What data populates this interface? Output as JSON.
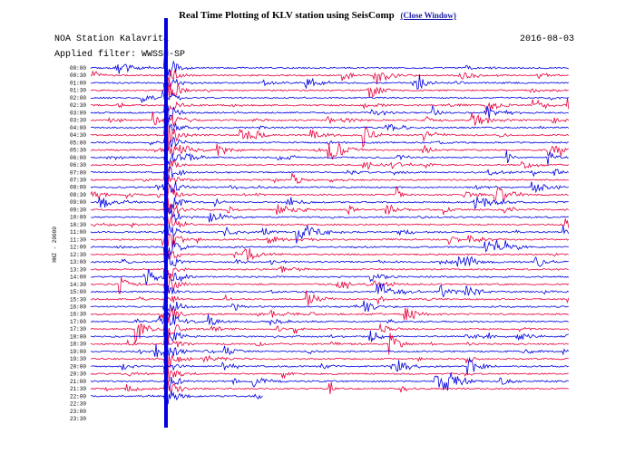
{
  "header": {
    "title": "Real Time Plotting of KLV station using SeisComp",
    "close_link": "(Close Window)"
  },
  "plot": {
    "station": "NOA Station Kalavrita",
    "date": "2016-08-03",
    "filter": "Applied filter: WWSSN-SP",
    "axis_label": "HHZ - 20000",
    "times": [
      "00:00",
      "00:30",
      "01:00",
      "01:30",
      "02:00",
      "02:30",
      "03:00",
      "03:30",
      "04:00",
      "04:30",
      "05:00",
      "05:30",
      "06:00",
      "06:30",
      "07:00",
      "07:30",
      "08:00",
      "08:30",
      "09:00",
      "09:30",
      "10:00",
      "10:30",
      "11:00",
      "11:30",
      "12:00",
      "12:30",
      "13:00",
      "13:30",
      "14:00",
      "14:30",
      "15:00",
      "15:30",
      "16:00",
      "16:30",
      "17:00",
      "17:30",
      "18:00",
      "18:30",
      "19:00",
      "19:30",
      "20:00",
      "20:30",
      "21:00",
      "21:30",
      "22:00",
      "22:30",
      "23:00",
      "23:30"
    ]
  }
}
